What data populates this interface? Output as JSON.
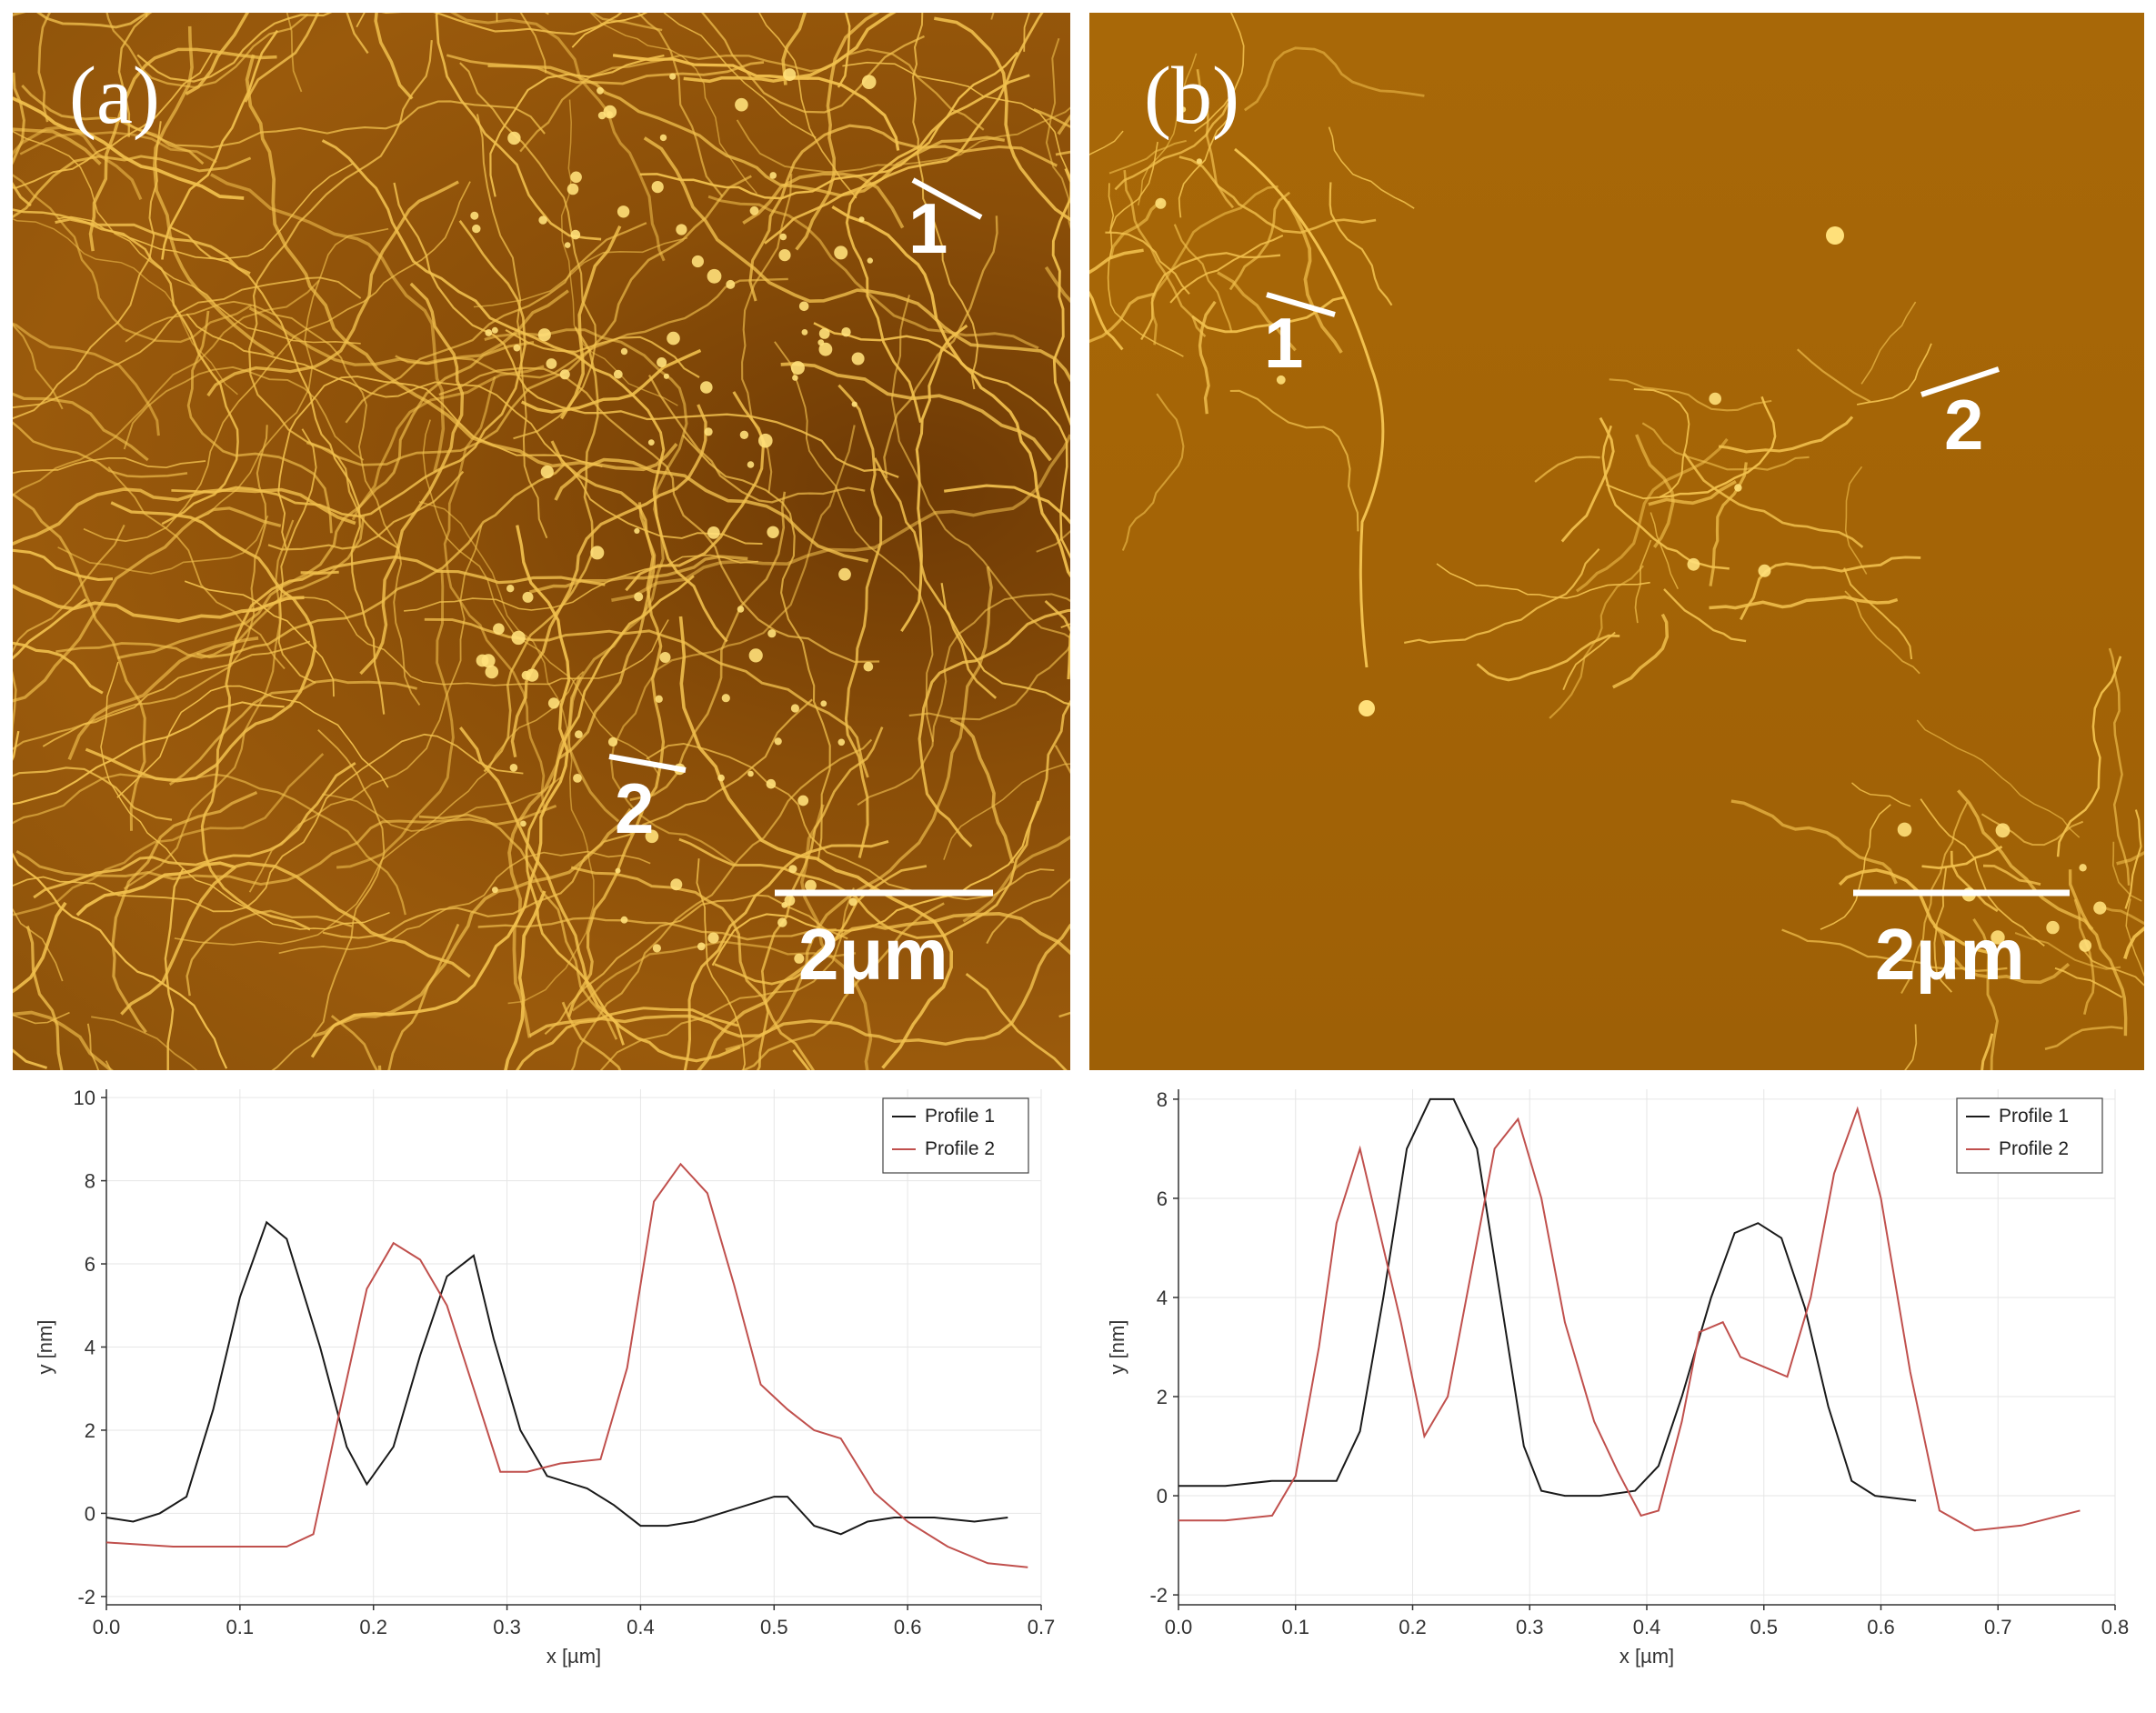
{
  "panels": [
    {
      "label": "(a)",
      "profile_labels": [
        "1",
        "2"
      ],
      "scale_bar": "2μm"
    },
    {
      "label": "(b)",
      "profile_labels": [
        "1",
        "2"
      ],
      "scale_bar": "2μm"
    }
  ],
  "colors": {
    "profile1": "#1a1a1a",
    "profile2": "#c0504d",
    "afm_fibre": "#f2c14e",
    "grid": "#e6e6e6"
  },
  "chart_data": [
    {
      "type": "line",
      "title": "",
      "xlabel": "x [µm]",
      "ylabel": "y [nm]",
      "xlim": [
        0.0,
        0.7
      ],
      "ylim": [
        -2.2,
        10.2
      ],
      "xticks": [
        "0.0",
        "0.1",
        "0.2",
        "0.3",
        "0.4",
        "0.5",
        "0.6",
        "0.7"
      ],
      "yticks": [
        "-2",
        "0",
        "2",
        "4",
        "6",
        "8",
        "10"
      ],
      "grid": true,
      "legend": "top-right",
      "series": [
        {
          "name": "Profile 1",
          "x": [
            0.0,
            0.02,
            0.04,
            0.06,
            0.08,
            0.1,
            0.12,
            0.135,
            0.16,
            0.18,
            0.195,
            0.215,
            0.235,
            0.255,
            0.275,
            0.29,
            0.31,
            0.33,
            0.36,
            0.38,
            0.4,
            0.42,
            0.44,
            0.46,
            0.48,
            0.5,
            0.51,
            0.53,
            0.55,
            0.57,
            0.59,
            0.62,
            0.65,
            0.675
          ],
          "y": [
            -0.1,
            -0.2,
            0.0,
            0.4,
            2.5,
            5.2,
            7.0,
            6.6,
            4.0,
            1.6,
            0.7,
            1.6,
            3.8,
            5.7,
            6.2,
            4.2,
            2.0,
            0.9,
            0.6,
            0.2,
            -0.3,
            -0.3,
            -0.2,
            0.0,
            0.2,
            0.4,
            0.4,
            -0.3,
            -0.5,
            -0.2,
            -0.1,
            -0.1,
            -0.2,
            -0.1
          ]
        },
        {
          "name": "Profile 2",
          "x": [
            0.0,
            0.05,
            0.1,
            0.135,
            0.155,
            0.175,
            0.195,
            0.215,
            0.235,
            0.255,
            0.275,
            0.295,
            0.315,
            0.34,
            0.37,
            0.39,
            0.41,
            0.43,
            0.45,
            0.47,
            0.49,
            0.51,
            0.53,
            0.55,
            0.575,
            0.6,
            0.63,
            0.66,
            0.69
          ],
          "y": [
            -0.7,
            -0.8,
            -0.8,
            -0.8,
            -0.5,
            2.5,
            5.4,
            6.5,
            6.1,
            5.0,
            3.0,
            1.0,
            1.0,
            1.2,
            1.3,
            3.5,
            7.5,
            8.4,
            7.7,
            5.5,
            3.1,
            2.5,
            2.0,
            1.8,
            0.5,
            -0.2,
            -0.8,
            -1.2,
            -1.3
          ]
        }
      ]
    },
    {
      "type": "line",
      "title": "",
      "xlabel": "x [µm]",
      "ylabel": "y [nm]",
      "xlim": [
        0.0,
        0.8
      ],
      "ylim": [
        -2.2,
        8.2
      ],
      "xticks": [
        "0.0",
        "0.1",
        "0.2",
        "0.3",
        "0.4",
        "0.5",
        "0.6",
        "0.7",
        "0.8"
      ],
      "yticks": [
        "-2",
        "0",
        "2",
        "4",
        "6",
        "8"
      ],
      "grid": true,
      "legend": "top-right",
      "series": [
        {
          "name": "Profile 1",
          "x": [
            0.0,
            0.04,
            0.08,
            0.11,
            0.135,
            0.155,
            0.175,
            0.195,
            0.215,
            0.235,
            0.255,
            0.275,
            0.295,
            0.31,
            0.33,
            0.36,
            0.39,
            0.41,
            0.43,
            0.455,
            0.475,
            0.495,
            0.515,
            0.535,
            0.555,
            0.575,
            0.595,
            0.63
          ],
          "y": [
            0.2,
            0.2,
            0.3,
            0.3,
            0.3,
            1.3,
            4.0,
            7.0,
            8.0,
            8.0,
            7.0,
            4.0,
            1.0,
            0.1,
            0.0,
            0.0,
            0.1,
            0.6,
            2.0,
            4.0,
            5.3,
            5.5,
            5.2,
            3.8,
            1.8,
            0.3,
            0.0,
            -0.1
          ]
        },
        {
          "name": "Profile 2",
          "x": [
            0.0,
            0.04,
            0.08,
            0.1,
            0.12,
            0.135,
            0.155,
            0.17,
            0.19,
            0.21,
            0.23,
            0.25,
            0.27,
            0.29,
            0.31,
            0.33,
            0.355,
            0.375,
            0.395,
            0.41,
            0.43,
            0.445,
            0.465,
            0.48,
            0.5,
            0.52,
            0.54,
            0.56,
            0.58,
            0.6,
            0.625,
            0.65,
            0.68,
            0.72,
            0.77
          ],
          "y": [
            -0.5,
            -0.5,
            -0.4,
            0.4,
            3.0,
            5.5,
            7.0,
            5.5,
            3.5,
            1.2,
            2.0,
            4.5,
            7.0,
            7.6,
            6.0,
            3.5,
            1.5,
            0.5,
            -0.4,
            -0.3,
            1.5,
            3.3,
            3.5,
            2.8,
            2.6,
            2.4,
            4.0,
            6.5,
            7.8,
            6.0,
            2.5,
            -0.3,
            -0.7,
            -0.6,
            -0.3
          ]
        }
      ]
    }
  ]
}
